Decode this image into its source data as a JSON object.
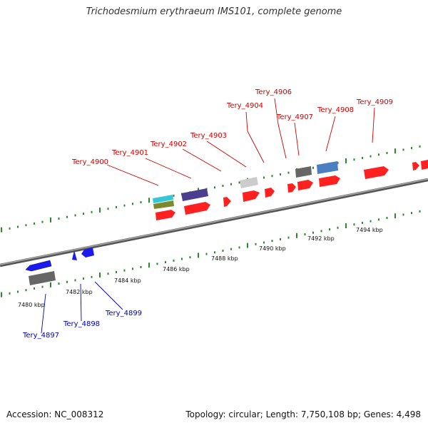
{
  "title": "Trichodesmium erythraeum IMS101, complete genome",
  "footer": {
    "accession": "Accession: NC_008312",
    "summary": "Topology: circular; Length: 7,750,108 bp; Genes: 4,498"
  },
  "colors": {
    "forward_gene": "#ff2020",
    "reverse_gene": "#1a1aee",
    "forward_label": "#cc0000",
    "reverse_label": "#0000bb",
    "backbone": "#808080",
    "tick_marks": "#2a8a2a"
  },
  "scale": {
    "unit": "kbp",
    "ticks": [
      {
        "value": 7480,
        "label": "7480 kbp"
      },
      {
        "value": 7482,
        "label": "7482 kbp"
      },
      {
        "value": 7484,
        "label": "7484 kbp"
      },
      {
        "value": 7486,
        "label": "7486 kbp"
      },
      {
        "value": 7488,
        "label": "7488 kbp"
      },
      {
        "value": 7490,
        "label": "7490 kbp"
      },
      {
        "value": 7492,
        "label": "7492 kbp"
      },
      {
        "value": 7494,
        "label": "7494 kbp"
      }
    ]
  },
  "gene_labels": [
    {
      "name": "Tery_4897",
      "strand": "reverse"
    },
    {
      "name": "Tery_4898",
      "strand": "reverse"
    },
    {
      "name": "Tery_4899",
      "strand": "reverse"
    },
    {
      "name": "Tery_4900",
      "strand": "forward"
    },
    {
      "name": "Tery_4901",
      "strand": "forward"
    },
    {
      "name": "Tery_4902",
      "strand": "forward"
    },
    {
      "name": "Tery_4903",
      "strand": "forward"
    },
    {
      "name": "Tery_4904",
      "strand": "forward"
    },
    {
      "name": "Tery_4906",
      "strand": "forward"
    },
    {
      "name": "Tery_4907",
      "strand": "forward"
    },
    {
      "name": "Tery_4908",
      "strand": "forward"
    },
    {
      "name": "Tery_4909",
      "strand": "forward"
    }
  ]
}
